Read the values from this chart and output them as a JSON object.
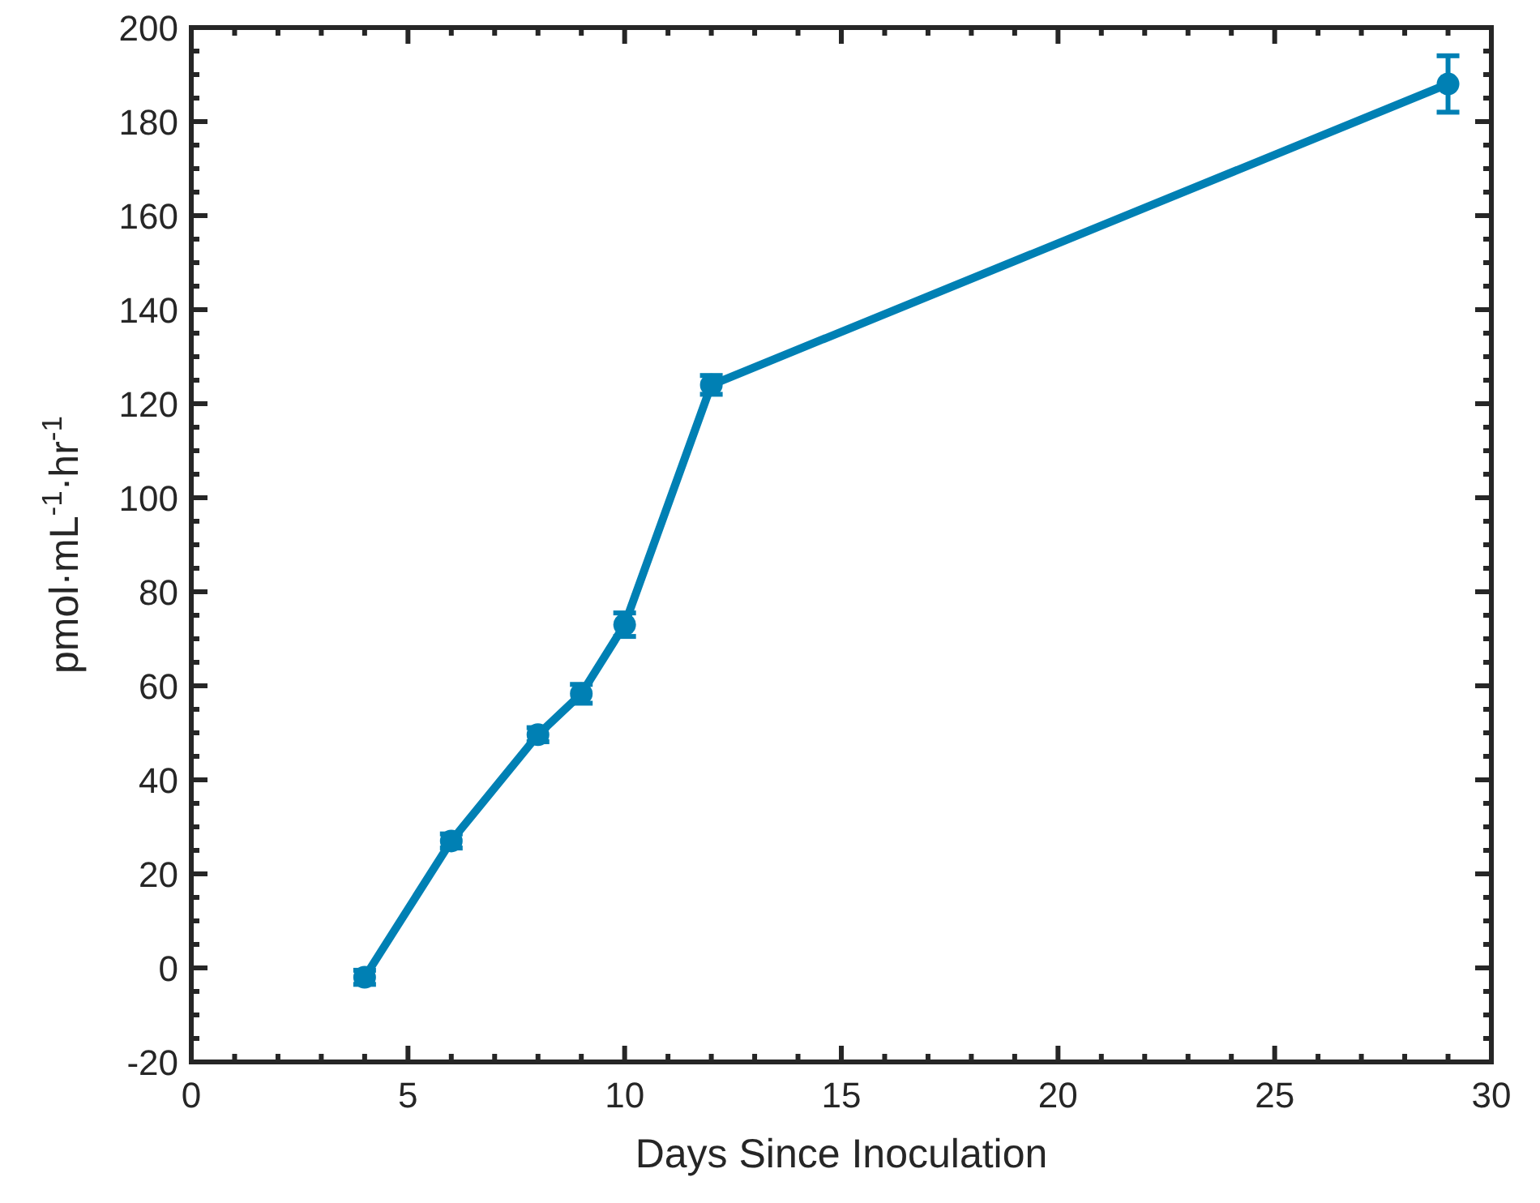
{
  "chart_data": {
    "type": "line",
    "xlabel": "Days Since Inoculation",
    "ylabel": "pmol·mL$^{-1}$·hr$^{-1}$",
    "x": [
      4,
      6,
      8,
      9,
      10,
      12,
      29
    ],
    "series": [
      {
        "color": "#0080b4",
        "values": [
          -2,
          27,
          49.6,
          58.3,
          73,
          124,
          188
        ],
        "errors": [
          1.5,
          1.5,
          1.5,
          2,
          2.5,
          2,
          6
        ]
      }
    ],
    "xlim": [
      0,
      30
    ],
    "xticks": [
      0,
      5,
      10,
      15,
      20,
      25,
      30
    ],
    "ylim": [
      -20,
      200
    ],
    "yticks": [
      -20,
      0,
      20,
      40,
      60,
      80,
      100,
      120,
      140,
      160,
      180,
      200
    ],
    "marker": "circle",
    "line_style": "solid",
    "grid": false
  }
}
